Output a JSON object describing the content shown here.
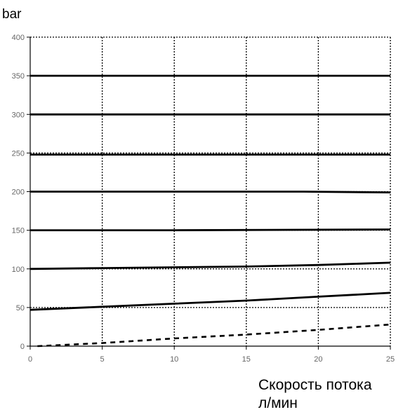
{
  "chart_data": {
    "type": "line",
    "xlabel_lines": [
      "Скорость потока",
      "л/мин"
    ],
    "ylabel": "bar",
    "xlim": [
      0,
      25
    ],
    "ylim": [
      0,
      400
    ],
    "x_ticks": [
      "0",
      "5",
      "10",
      "15",
      "20",
      "25"
    ],
    "y_ticks": [
      "0",
      "50",
      "100",
      "150",
      "200",
      "250",
      "300",
      "350",
      "400"
    ],
    "grid": "dotted",
    "series": [
      {
        "style": "solid",
        "points": [
          [
            0,
            350
          ],
          [
            25,
            350
          ]
        ]
      },
      {
        "style": "solid",
        "points": [
          [
            0,
            300
          ],
          [
            25,
            300
          ]
        ]
      },
      {
        "style": "solid",
        "points": [
          [
            0,
            248
          ],
          [
            25,
            248
          ]
        ]
      },
      {
        "style": "solid",
        "points": [
          [
            0,
            200
          ],
          [
            19,
            200
          ],
          [
            25,
            199
          ]
        ]
      },
      {
        "style": "solid",
        "points": [
          [
            0,
            150
          ],
          [
            10,
            150
          ],
          [
            25,
            151
          ]
        ]
      },
      {
        "style": "solid",
        "points": [
          [
            0,
            100
          ],
          [
            5,
            101
          ],
          [
            10,
            102
          ],
          [
            15,
            103
          ],
          [
            20,
            105
          ],
          [
            25,
            108
          ]
        ]
      },
      {
        "style": "solid",
        "points": [
          [
            0,
            47
          ],
          [
            5,
            51
          ],
          [
            10,
            55
          ],
          [
            15,
            59
          ],
          [
            20,
            64
          ],
          [
            25,
            69
          ]
        ]
      },
      {
        "style": "dashed",
        "points": [
          [
            0.5,
            0
          ],
          [
            5,
            4
          ],
          [
            10,
            10
          ],
          [
            15,
            15
          ],
          [
            20,
            21
          ],
          [
            25,
            28
          ]
        ]
      }
    ]
  }
}
